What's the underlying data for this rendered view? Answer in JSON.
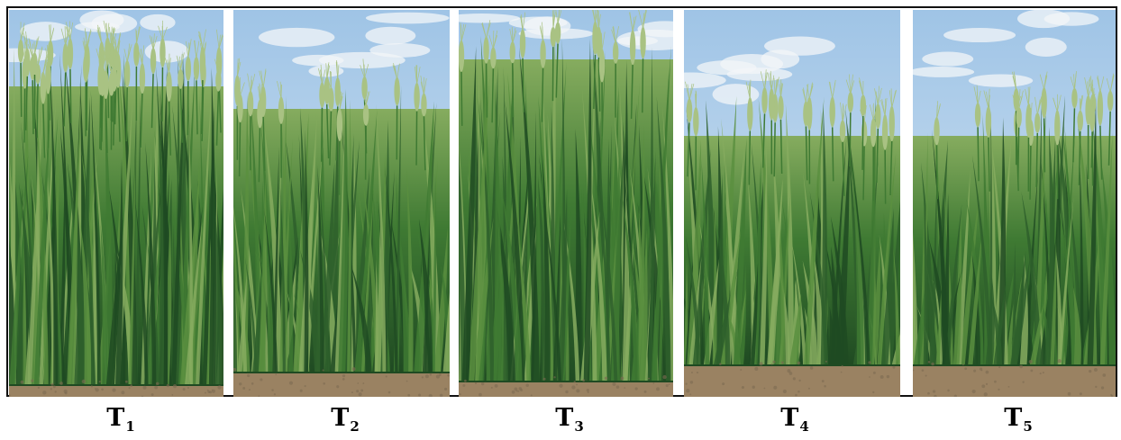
{
  "figure": {
    "panels": [
      {
        "id": "T1",
        "main": "T",
        "sub": "1",
        "variant": "dense-headed"
      },
      {
        "id": "T2",
        "main": "T",
        "sub": "2",
        "variant": "leafy"
      },
      {
        "id": "T3",
        "main": "T",
        "sub": "3",
        "variant": "tall-dense"
      },
      {
        "id": "T4",
        "main": "T",
        "sub": "4",
        "variant": "sparse"
      },
      {
        "id": "T5",
        "main": "T",
        "sub": "5",
        "variant": "sparse"
      }
    ],
    "colors": {
      "sky_top": "#9fc4e6",
      "sky_bottom": "#dbe9f4",
      "cloud": "#f3f6f8",
      "plant_dark": "#1f4a22",
      "plant_mid": "#3f7a33",
      "plant_light": "#86ac5f",
      "ear": "#a9c283",
      "soil": "#9a8262",
      "soil_dark": "#7d6a52",
      "divider": "#ffffff",
      "border": "#111111"
    }
  }
}
